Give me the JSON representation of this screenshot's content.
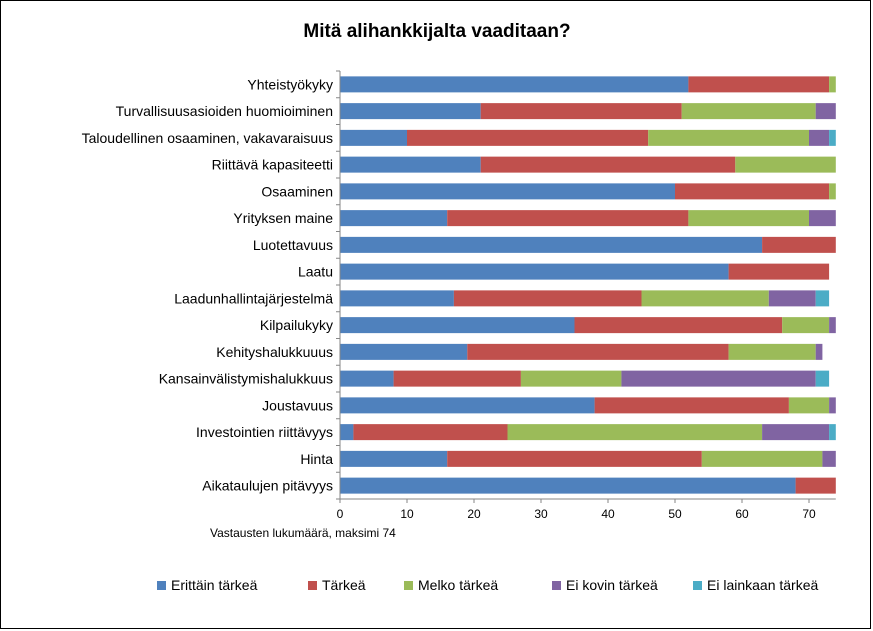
{
  "chart_data": {
    "type": "bar",
    "orientation": "horizontal",
    "stacked": true,
    "title": "Mitä alihankkijalta vaaditaan?",
    "xlabel": "Vastausten lukumäärä, maksimi 74",
    "xlim": [
      0,
      74
    ],
    "xticks": [
      0,
      10,
      20,
      30,
      40,
      50,
      60,
      70
    ],
    "grid": false,
    "legend_position": "bottom",
    "categories": [
      "Yhteistyökyky",
      "Turvallisuusasioiden huomioiminen",
      "Taloudellinen osaaminen, vakavaraisuus",
      "Riittävä kapasiteetti",
      "Osaaminen",
      "Yrityksen maine",
      "Luotettavuus",
      "Laatu",
      "Laadunhallintajärjestelmä",
      "Kilpailukyky",
      "Kehityshalukkuuus",
      "Kansainvälistymishalukkuus",
      "Joustavuus",
      "Investointien riittävyys",
      "Hinta",
      "Aikataulujen pitävyys"
    ],
    "series": [
      {
        "name": "Erittäin tärkeä",
        "color": "#4F81BD",
        "values": [
          52,
          21,
          10,
          21,
          50,
          16,
          63,
          58,
          17,
          35,
          19,
          8,
          38,
          2,
          16,
          68
        ]
      },
      {
        "name": "Tärkeä",
        "color": "#C0504D",
        "values": [
          21,
          30,
          36,
          38,
          23,
          36,
          11,
          15,
          28,
          31,
          39,
          19,
          29,
          23,
          38,
          6
        ]
      },
      {
        "name": "Melko tärkeä",
        "color": "#9BBB59",
        "values": [
          1,
          20,
          24,
          15,
          1,
          18,
          0,
          0,
          19,
          7,
          13,
          15,
          6,
          38,
          18,
          0
        ]
      },
      {
        "name": "Ei kovin tärkeä",
        "color": "#8064A2",
        "values": [
          0,
          3,
          3,
          0,
          0,
          4,
          0,
          0,
          7,
          1,
          1,
          29,
          1,
          10,
          2,
          0
        ]
      },
      {
        "name": "Ei lainkaan tärkeä",
        "color": "#4BACC6",
        "values": [
          0,
          0,
          1,
          0,
          0,
          0,
          0,
          0,
          2,
          0,
          0,
          2,
          0,
          1,
          0,
          0
        ]
      }
    ]
  }
}
